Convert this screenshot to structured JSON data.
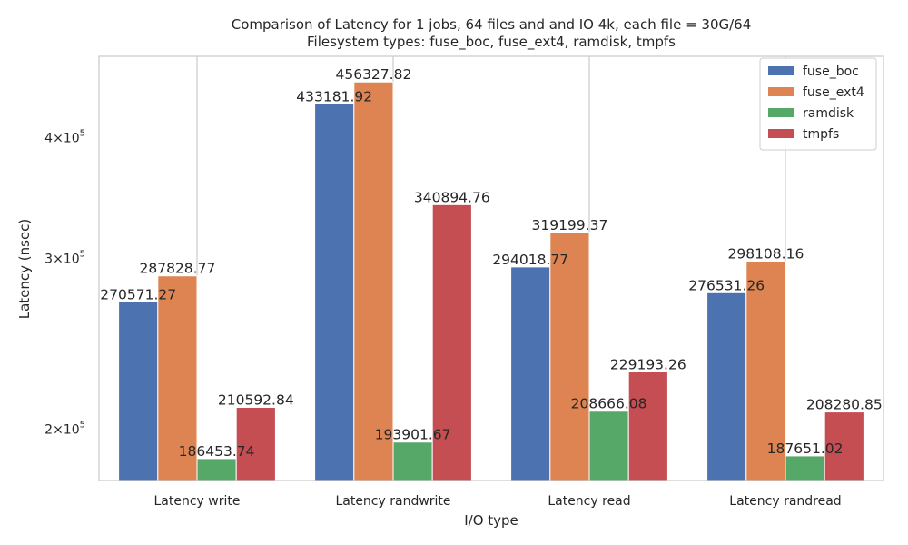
{
  "chart_data": {
    "type": "bar",
    "title_line1": "Comparison of Latency for 1 jobs, 64 files and  and IO 4k, each file = 30G/64",
    "title_line2": "Filesystem types: fuse_boc, fuse_ext4, ramdisk, tmpfs",
    "xlabel": "I/O type",
    "ylabel": "Latency (nsec)",
    "yscale": "log",
    "ylim": [
      177000,
      485000
    ],
    "yticks": [
      {
        "value": 200000,
        "mantissa": "2",
        "exponent": "5"
      },
      {
        "value": 300000,
        "mantissa": "3",
        "exponent": "5"
      },
      {
        "value": 400000,
        "mantissa": "4",
        "exponent": "5"
      }
    ],
    "categories": [
      "Latency write",
      "Latency randwrite",
      "Latency read",
      "Latency randread"
    ],
    "series": [
      {
        "name": "fuse_boc",
        "color": "#4c72b0",
        "values": [
          270571.27,
          433181.92,
          294018.77,
          276531.26
        ],
        "labels": [
          "270571.27",
          "433181.92",
          "294018.77",
          "276531.26"
        ]
      },
      {
        "name": "fuse_ext4",
        "color": "#dd8452",
        "values": [
          287828.77,
          456327.82,
          319199.37,
          298108.16
        ],
        "labels": [
          "287828.77",
          "456327.82",
          "319199.37",
          "298108.16"
        ]
      },
      {
        "name": "ramdisk",
        "color": "#55a868",
        "values": [
          186453.74,
          193901.67,
          208666.08,
          187651.02
        ],
        "labels": [
          "186453.74",
          "193901.67",
          "208666.08",
          "187651.02"
        ]
      },
      {
        "name": "tmpfs",
        "color": "#c44e52",
        "values": [
          210592.84,
          340894.76,
          229193.26,
          208280.85
        ],
        "labels": [
          "210592.84",
          "340894.76",
          "229193.26",
          "208280.85"
        ]
      }
    ],
    "grid": {
      "x": true,
      "y": false
    },
    "legend_position": "top-right"
  }
}
